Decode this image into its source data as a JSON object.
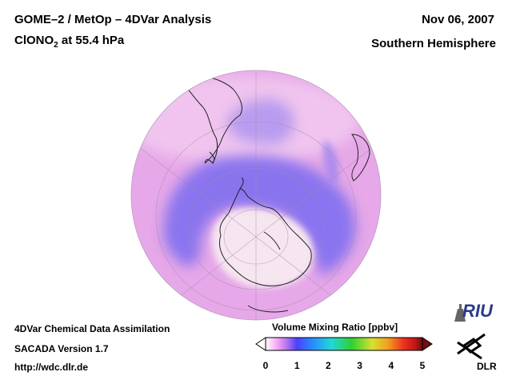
{
  "header": {
    "title_main": "GOME–2 / MetOp – 4DVar Analysis",
    "species_prefix": "ClONO",
    "species_subscript": "2",
    "species_suffix": " at 55.4 hPa",
    "date": "Nov 06, 2007",
    "region": "Southern Hemisphere"
  },
  "footer": {
    "line1": "4DVar Chemical Data Assimilation",
    "line2": "SACADA Version 1.7",
    "line3": "http://wdc.dlr.de"
  },
  "colorbar": {
    "title": "Volume Mixing Ratio [ppbv]",
    "ticks": [
      "0",
      "1",
      "2",
      "3",
      "4",
      "5"
    ],
    "min": 0,
    "max": 5,
    "colors": [
      "#ffffff",
      "#f2a0f2",
      "#b070f0",
      "#4a40ff",
      "#2a8cff",
      "#20d8d8",
      "#30d030",
      "#d8e030",
      "#f0a020",
      "#f03020",
      "#c01818",
      "#701010"
    ]
  },
  "logos": {
    "riu": "RIU",
    "dlr": "DLR"
  },
  "colors": {
    "background": "#ffffff",
    "globe_base": "#e8a4e8",
    "low_band": "#7a6cf0",
    "antarctic_core": "#f6e8f0",
    "coast": "#222222"
  }
}
